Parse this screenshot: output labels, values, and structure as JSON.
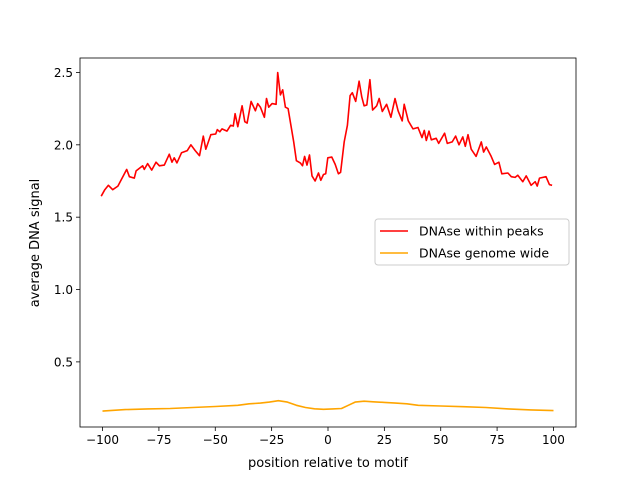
{
  "chart_data": {
    "type": "line",
    "title": "",
    "xlabel": "position relative to motif",
    "ylabel": "average DNA signal",
    "xlim": [
      -110,
      110
    ],
    "ylim": [
      0.05,
      2.6
    ],
    "xticks": [
      -100,
      -75,
      -50,
      -25,
      0,
      25,
      50,
      75,
      100
    ],
    "xtick_labels": [
      "−100",
      "−75",
      "−50",
      "−25",
      "0",
      "25",
      "50",
      "75",
      "100"
    ],
    "yticks": [
      0.5,
      1.0,
      1.5,
      2.0,
      2.5
    ],
    "ytick_labels": [
      "0.5",
      "1.0",
      "1.5",
      "2.0",
      "2.5"
    ],
    "grid": false,
    "legend_position": "center-right",
    "series": [
      {
        "name": "DNAse within peaks",
        "color": "#ff0000",
        "x": [
          -100.6,
          -99,
          -97.4,
          -95.5,
          -93.2,
          -89.3,
          -88.1,
          -85.9,
          -85.1,
          -82.2,
          -81.5,
          -80,
          -78.2,
          -76.3,
          -74.8,
          -72.6,
          -70.4,
          -69.2,
          -68.2,
          -67,
          -65,
          -62.4,
          -60.8,
          -58.9,
          -57,
          -55.3,
          -54.2,
          -52,
          -49.8,
          -49.1,
          -48,
          -47,
          -44.8,
          -43.2,
          -42,
          -41.2,
          -40,
          -38.1,
          -36.9,
          -35.9,
          -34.1,
          -32.2,
          -31.2,
          -30,
          -28.2,
          -27.3,
          -26.3,
          -24.8,
          -23,
          -22.3,
          -21.1,
          -20.1,
          -18.9,
          -17.7,
          -15.2,
          -14,
          -12.3,
          -11.3,
          -10.4,
          -9.3,
          -8.2,
          -7.1,
          -5.7,
          -4.2,
          -3.2,
          -2,
          -1,
          -0.1,
          1.7,
          3.2,
          4.6,
          5.6,
          7.2,
          8.6,
          9.8,
          10.8,
          12.3,
          13.8,
          15,
          16,
          17.2,
          18.6,
          19.8,
          21.6,
          22.7,
          24.1,
          26,
          27.9,
          29.7,
          31.1,
          32.9,
          33.8,
          35.6,
          37.7,
          39.9,
          41.7,
          42.7,
          43.6,
          44.8,
          45.8,
          48,
          49.1,
          51.7,
          52.9,
          55.1,
          56.6,
          58.1,
          59.8,
          60.9,
          62.1,
          63.5,
          65.7,
          68,
          69,
          70.2,
          72.4,
          73.9,
          75.8,
          77.1,
          79.8,
          81.3,
          83,
          84.2,
          86.4,
          87.9,
          90.1,
          91.9,
          92.8,
          93.8,
          96.7,
          98.2,
          99.4
        ],
        "y": [
          1.645,
          1.69,
          1.72,
          1.69,
          1.715,
          1.83,
          1.78,
          1.77,
          1.82,
          1.855,
          1.83,
          1.87,
          1.825,
          1.88,
          1.855,
          1.86,
          1.935,
          1.88,
          1.91,
          1.875,
          1.945,
          1.96,
          2.0,
          1.96,
          1.925,
          2.06,
          1.97,
          2.07,
          2.075,
          2.105,
          2.09,
          2.11,
          2.095,
          2.135,
          2.13,
          2.215,
          2.125,
          2.27,
          2.16,
          2.15,
          2.3,
          2.235,
          2.285,
          2.26,
          2.19,
          2.32,
          2.26,
          2.285,
          2.28,
          2.5,
          2.345,
          2.38,
          2.26,
          2.25,
          2.02,
          1.89,
          1.875,
          1.855,
          1.92,
          1.86,
          1.93,
          1.785,
          1.75,
          1.805,
          1.755,
          1.795,
          1.8,
          1.91,
          1.915,
          1.865,
          1.8,
          1.81,
          2.02,
          2.135,
          2.34,
          2.36,
          2.3,
          2.44,
          2.33,
          2.27,
          2.275,
          2.45,
          2.24,
          2.27,
          2.32,
          2.23,
          2.28,
          2.19,
          2.32,
          2.235,
          2.165,
          2.28,
          2.165,
          2.11,
          2.12,
          2.05,
          2.1,
          2.03,
          2.095,
          2.035,
          2.045,
          2.01,
          2.08,
          2.01,
          2.02,
          2.06,
          2.0,
          2.055,
          1.99,
          2.07,
          1.97,
          1.92,
          2.02,
          1.95,
          1.985,
          1.92,
          1.865,
          1.88,
          1.8,
          1.805,
          1.78,
          1.775,
          1.79,
          1.745,
          1.785,
          1.72,
          1.745,
          1.715,
          1.77,
          1.78,
          1.725,
          1.72
        ]
      },
      {
        "name": "DNAse genome wide",
        "color": "#ffa500",
        "x": [
          -100,
          -90,
          -80,
          -70,
          -60,
          -50,
          -40,
          -35,
          -30,
          -26,
          -22,
          -18,
          -14,
          -10,
          -6,
          -2,
          2,
          6,
          9,
          12,
          16,
          20,
          25,
          30,
          35,
          40,
          50,
          60,
          70,
          80,
          90,
          100
        ],
        "y": [
          0.16,
          0.17,
          0.175,
          0.178,
          0.185,
          0.192,
          0.2,
          0.21,
          0.215,
          0.222,
          0.232,
          0.222,
          0.2,
          0.185,
          0.176,
          0.172,
          0.175,
          0.178,
          0.2,
          0.222,
          0.228,
          0.224,
          0.22,
          0.215,
          0.21,
          0.2,
          0.195,
          0.19,
          0.185,
          0.175,
          0.168,
          0.163
        ]
      }
    ]
  }
}
